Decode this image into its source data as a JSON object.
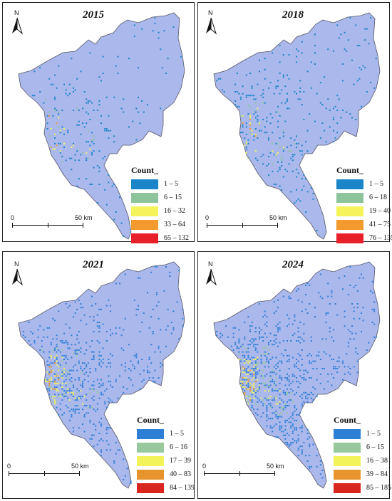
{
  "colors": {
    "base": "#aab8ec",
    "outline": "#555566",
    "c1": "#1a85c8",
    "c2": "#8dc49b",
    "c3": "#f4f45a",
    "c4": "#f39a2e",
    "c5": "#e8202a"
  },
  "north_label": "N",
  "scale_bar": {
    "zero": "0",
    "distance": "50 km"
  },
  "panels": [
    {
      "year": "2015",
      "legend": {
        "title": "Count_",
        "classes": [
          {
            "label": "1 – 5",
            "color": "#1a85c8"
          },
          {
            "label": "6 – 15",
            "color": "#8dc49b"
          },
          {
            "label": "16 – 32",
            "color": "#f4f45a"
          },
          {
            "label": "33 – 64",
            "color": "#f39a2e"
          },
          {
            "label": "65 – 132",
            "color": "#e8202a"
          }
        ]
      }
    },
    {
      "year": "2018",
      "legend": {
        "title": "Count_",
        "classes": [
          {
            "label": "1 – 5",
            "color": "#1a85c8"
          },
          {
            "label": "6 – 18",
            "color": "#8dc49b"
          },
          {
            "label": "19 – 40",
            "color": "#f4f45a"
          },
          {
            "label": "41 – 75",
            "color": "#f39a2e"
          },
          {
            "label": "76 – 135",
            "color": "#e8202a"
          }
        ]
      }
    },
    {
      "year": "2021",
      "legend": {
        "title": "Count_",
        "classes": [
          {
            "label": "1 – 5",
            "color": "#2d7fd6"
          },
          {
            "label": "6 – 16",
            "color": "#98c99c"
          },
          {
            "label": "17 – 39",
            "color": "#f2f358"
          },
          {
            "label": "40 – 83",
            "color": "#e8942e"
          },
          {
            "label": "84 – 139",
            "color": "#d9261f"
          }
        ]
      }
    },
    {
      "year": "2024",
      "legend": {
        "title": "Count_",
        "classes": [
          {
            "label": "1 – 5",
            "color": "#2d7fd6"
          },
          {
            "label": "6 – 15",
            "color": "#98c99c"
          },
          {
            "label": "16 – 38",
            "color": "#f2f358"
          },
          {
            "label": "39 – 84",
            "color": "#e8942e"
          },
          {
            "label": "85 – 185",
            "color": "#d9261f"
          }
        ]
      }
    }
  ]
}
